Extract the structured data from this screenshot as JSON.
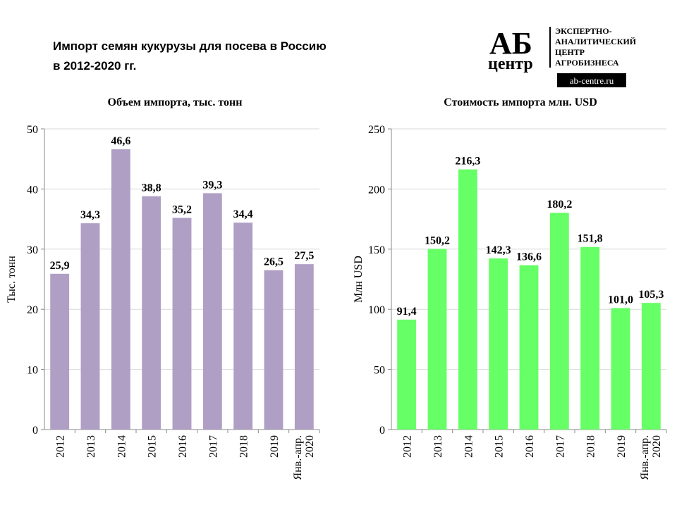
{
  "header": {
    "title_line1": "Импорт семян кукурузы для посева в Россию",
    "title_line2": "в 2012-2020 гг."
  },
  "logo": {
    "mark_top": "АБ",
    "mark_bottom": "центр",
    "line1": "ЭКСПЕРТНО-",
    "line2": "АНАЛИТИЧЕСКИЙ",
    "line3": "ЦЕНТР",
    "line4": "АГРОБИЗНЕСА",
    "url": "ab-centre.ru"
  },
  "chart_data": [
    {
      "type": "bar",
      "title": "Объем импорта, тыс. тонн",
      "xlabel": "",
      "ylabel": "Тыс. тонн",
      "categories": [
        "2012",
        "2013",
        "2014",
        "2015",
        "2016",
        "2017",
        "2018",
        "2019",
        "Янв.-апр.|2020"
      ],
      "values": [
        25.9,
        34.3,
        46.6,
        38.8,
        35.2,
        39.3,
        34.4,
        26.5,
        27.5
      ],
      "labels": [
        "25,9",
        "34,3",
        "46,6",
        "38,8",
        "35,2",
        "39,3",
        "34,4",
        "26,5",
        "27,5"
      ],
      "ylim": [
        0,
        50
      ],
      "yticks": [
        0,
        10,
        20,
        30,
        40,
        50
      ],
      "grid": true,
      "color": "#b09fc4"
    },
    {
      "type": "bar",
      "title": "Стоимость импорта млн. USD",
      "xlabel": "",
      "ylabel": "Млн USD",
      "categories": [
        "2012",
        "2013",
        "2014",
        "2015",
        "2016",
        "2017",
        "2018",
        "2019",
        "Янв.-апр.|2020"
      ],
      "values": [
        91.4,
        150.2,
        216.3,
        142.3,
        136.6,
        180.2,
        151.8,
        101.0,
        105.3
      ],
      "labels": [
        "91,4",
        "150,2",
        "216,3",
        "142,3",
        "136,6",
        "180,2",
        "151,8",
        "101,0",
        "105,3"
      ],
      "ylim": [
        0,
        250
      ],
      "yticks": [
        0,
        50,
        100,
        150,
        200,
        250
      ],
      "grid": true,
      "color": "#66ff66"
    }
  ]
}
